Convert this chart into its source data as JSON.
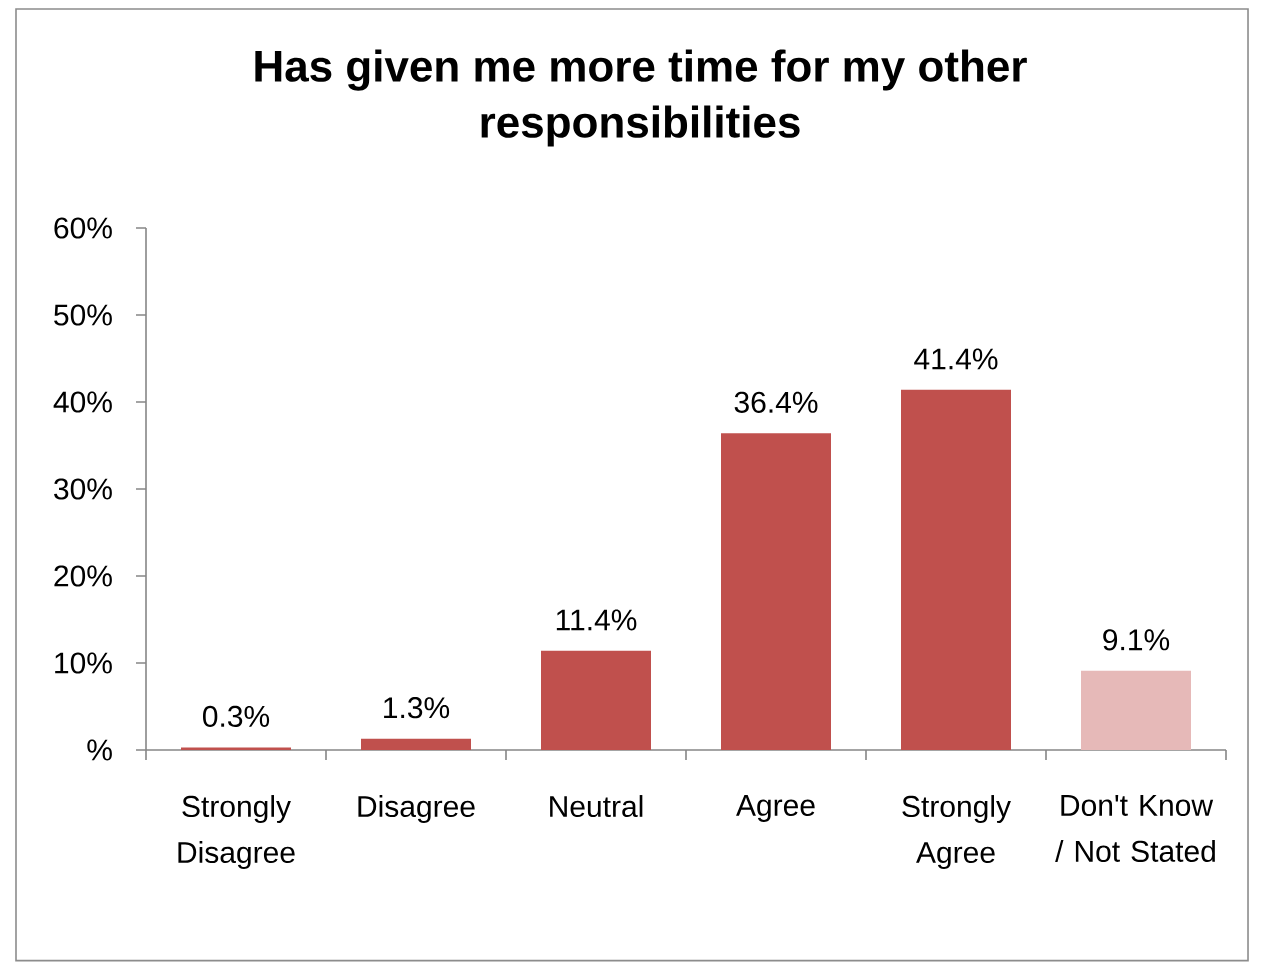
{
  "chart_data": {
    "type": "bar",
    "title": "Has given me more time for my other responsibilities",
    "categories": [
      "Strongly Disagree",
      "Disagree",
      "Neutral",
      "Agree",
      "Strongly Agree",
      "Don't Know / Not Stated"
    ],
    "values": [
      0.3,
      1.3,
      11.4,
      36.4,
      41.4,
      9.1
    ],
    "colors": [
      "#c0504d",
      "#c0504d",
      "#c0504d",
      "#c0504d",
      "#c0504d",
      "#e6b9b8"
    ],
    "value_labels": [
      "0.3%",
      "1.3%",
      "11.4%",
      "36.4%",
      "41.4%",
      "9.1%"
    ],
    "ylim": [
      0,
      60
    ],
    "yticks": [
      {
        "value": 0,
        "label": "%"
      },
      {
        "value": 10,
        "label": "10%"
      },
      {
        "value": 20,
        "label": "20%"
      },
      {
        "value": 30,
        "label": "30%"
      },
      {
        "value": 40,
        "label": "40%"
      },
      {
        "value": 50,
        "label": "50%"
      },
      {
        "value": 60,
        "label": "60%"
      }
    ]
  }
}
